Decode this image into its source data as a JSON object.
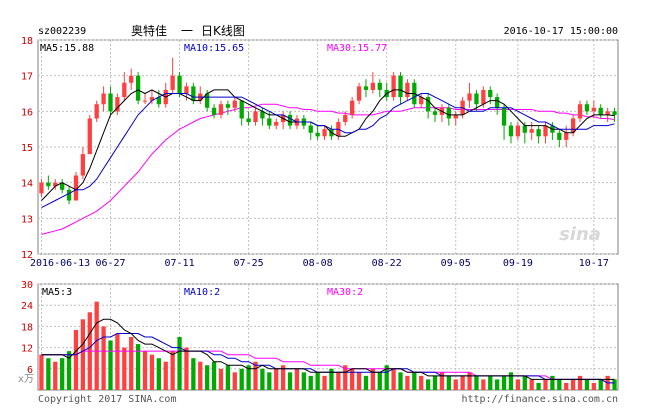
{
  "header": {
    "code": "sz002239",
    "name": "奥特佳",
    "sep": "一",
    "period": "日K线图",
    "datetime": "2016-10-17 15:00:00"
  },
  "price_panel": {
    "ma5_label": "MA5:15.88",
    "ma10_label": "MA10:15.65",
    "ma30_label": "MA30:15.77",
    "y_ticks": [
      "18",
      "17",
      "16",
      "15",
      "14",
      "13",
      "12"
    ],
    "x_ticks": [
      "2016-06-13",
      "06-27",
      "07-11",
      "07-25",
      "08-08",
      "08-22",
      "09-05",
      "09-19",
      "10-17"
    ]
  },
  "volume_panel": {
    "ma5_label": "MA5:3",
    "ma10_label": "MA10:2",
    "ma30_label": "MA30:2",
    "y_ticks": [
      "30",
      "24",
      "18",
      "12",
      "6"
    ],
    "unit": "x万"
  },
  "watermark": "sina",
  "footer": {
    "copyright": "Copyright 2017 SINA.com",
    "url": "http://finance.sina.com.cn"
  },
  "colors": {
    "up": "#ff4040",
    "down": "#00aa00",
    "ma5": "#000000",
    "ma10": "#0000cc",
    "ma30": "#ff00ff",
    "grid": "#c0c0c0",
    "axis_label": "#cc0000"
  },
  "chart_data": [
    {
      "type": "candlestick",
      "title": "奥特佳 一 日K线图",
      "ylim": [
        12,
        18
      ],
      "x_tick_labels": [
        "2016-06-13",
        "06-27",
        "07-11",
        "07-25",
        "08-08",
        "08-22",
        "09-05",
        "09-19",
        "10-17"
      ],
      "series": [
        {
          "name": "MA5",
          "values": [
            13.5,
            13.7,
            13.9,
            14.0,
            13.9,
            13.8,
            14.0,
            14.4,
            14.9,
            15.4,
            15.9,
            16.1,
            16.3,
            16.5,
            16.6,
            16.5,
            16.6,
            16.5,
            16.4,
            16.5,
            16.5,
            16.4,
            16.3,
            16.3,
            16.5,
            16.6,
            16.6,
            16.6,
            16.4,
            16.3,
            16.2,
            16.1,
            16.0,
            15.9,
            15.9,
            15.8,
            15.7,
            15.7,
            15.7,
            15.7,
            15.6,
            15.6,
            15.4,
            15.3,
            15.3,
            15.4,
            15.5,
            15.8,
            16.0,
            16.3,
            16.5,
            16.6,
            16.6,
            16.5,
            16.5,
            16.4,
            16.3,
            16.1,
            16.0,
            15.9,
            15.9,
            15.9,
            16.0,
            16.1,
            16.2,
            16.3,
            16.3,
            16.2,
            16.0,
            15.8,
            15.6,
            15.6,
            15.6,
            15.6,
            15.5,
            15.5,
            15.4,
            15.4,
            15.6,
            15.8,
            15.9,
            15.9,
            15.9,
            15.88
          ]
        },
        {
          "name": "MA10",
          "values": [
            13.3,
            13.4,
            13.5,
            13.6,
            13.7,
            13.8,
            13.8,
            13.9,
            14.1,
            14.4,
            14.7,
            15.0,
            15.3,
            15.6,
            15.9,
            16.1,
            16.3,
            16.4,
            16.5,
            16.5,
            16.5,
            16.5,
            16.4,
            16.4,
            16.4,
            16.4,
            16.4,
            16.4,
            16.4,
            16.4,
            16.3,
            16.2,
            16.1,
            16.0,
            15.9,
            15.9,
            15.8,
            15.7,
            15.7,
            15.7,
            15.6,
            15.6,
            15.5,
            15.5,
            15.4,
            15.4,
            15.5,
            15.5,
            15.6,
            15.8,
            15.9,
            16.1,
            16.2,
            16.3,
            16.4,
            16.5,
            16.5,
            16.4,
            16.3,
            16.2,
            16.1,
            16.1,
            16.0,
            16.0,
            16.0,
            16.1,
            16.1,
            16.1,
            16.1,
            16.0,
            15.9,
            15.8,
            15.7,
            15.7,
            15.6,
            15.5,
            15.5,
            15.5,
            15.5,
            15.5,
            15.6,
            15.6,
            15.6,
            15.65
          ]
        },
        {
          "name": "MA30",
          "values": [
            12.55,
            12.6,
            12.65,
            12.7,
            12.8,
            12.9,
            13.0,
            13.1,
            13.2,
            13.35,
            13.5,
            13.7,
            13.9,
            14.1,
            14.3,
            14.55,
            14.8,
            15.0,
            15.2,
            15.35,
            15.5,
            15.6,
            15.7,
            15.8,
            15.85,
            15.9,
            15.95,
            16.0,
            16.05,
            16.1,
            16.1,
            16.15,
            16.2,
            16.2,
            16.2,
            16.15,
            16.1,
            16.1,
            16.05,
            16.05,
            16.0,
            16.0,
            16.0,
            15.95,
            15.95,
            15.9,
            15.9,
            15.9,
            15.9,
            15.95,
            16.0,
            16.0,
            16.0,
            16.05,
            16.1,
            16.1,
            16.1,
            16.1,
            16.1,
            16.1,
            16.05,
            16.05,
            16.05,
            16.05,
            16.05,
            16.05,
            16.05,
            16.05,
            16.05,
            16.05,
            16.05,
            16.05,
            16.0,
            16.0,
            16.0,
            15.95,
            15.95,
            15.9,
            15.9,
            15.85,
            15.85,
            15.8,
            15.8,
            15.77
          ]
        }
      ],
      "candles": [
        [
          13.7,
          14.0,
          13.6,
          14.1
        ],
        [
          14.0,
          13.9,
          13.8,
          14.2
        ],
        [
          13.9,
          14.0,
          13.8,
          14.1
        ],
        [
          14.0,
          13.8,
          13.7,
          14.1
        ],
        [
          13.8,
          13.5,
          13.4,
          13.9
        ],
        [
          13.5,
          14.2,
          13.5,
          14.3
        ],
        [
          14.2,
          14.8,
          14.1,
          15.0
        ],
        [
          14.8,
          15.8,
          14.8,
          15.9
        ],
        [
          15.8,
          16.2,
          15.7,
          16.3
        ],
        [
          16.2,
          16.5,
          16.0,
          16.7
        ],
        [
          16.5,
          16.0,
          15.9,
          16.7
        ],
        [
          16.0,
          16.4,
          15.9,
          16.5
        ],
        [
          16.4,
          16.8,
          16.3,
          17.1
        ],
        [
          16.8,
          17.0,
          16.6,
          17.2
        ],
        [
          17.0,
          16.3,
          16.2,
          17.1
        ],
        [
          16.3,
          16.3,
          16.2,
          16.5
        ],
        [
          16.3,
          16.4,
          16.2,
          16.6
        ],
        [
          16.4,
          16.2,
          16.1,
          16.6
        ],
        [
          16.2,
          16.6,
          16.1,
          16.8
        ],
        [
          16.6,
          17.0,
          16.5,
          17.5
        ],
        [
          17.0,
          16.5,
          16.4,
          17.1
        ],
        [
          16.5,
          16.7,
          16.3,
          16.8
        ],
        [
          16.7,
          16.3,
          16.2,
          16.8
        ],
        [
          16.3,
          16.5,
          16.2,
          16.7
        ],
        [
          16.5,
          16.1,
          16.0,
          16.6
        ],
        [
          16.1,
          15.9,
          15.8,
          16.2
        ],
        [
          15.9,
          16.2,
          15.8,
          16.3
        ],
        [
          16.2,
          16.1,
          15.9,
          16.3
        ],
        [
          16.1,
          16.3,
          16.0,
          16.4
        ],
        [
          16.3,
          15.8,
          15.6,
          16.3
        ],
        [
          15.8,
          15.7,
          15.6,
          16.0
        ],
        [
          15.7,
          16.0,
          15.6,
          16.1
        ],
        [
          16.0,
          15.8,
          15.6,
          16.1
        ],
        [
          15.8,
          15.6,
          15.5,
          16.0
        ],
        [
          15.6,
          15.7,
          15.5,
          15.8
        ],
        [
          15.7,
          15.9,
          15.5,
          16.0
        ],
        [
          15.9,
          15.6,
          15.5,
          16.0
        ],
        [
          15.6,
          15.8,
          15.5,
          15.9
        ],
        [
          15.8,
          15.6,
          15.5,
          15.9
        ],
        [
          15.6,
          15.4,
          15.2,
          15.7
        ],
        [
          15.4,
          15.3,
          15.2,
          15.6
        ],
        [
          15.3,
          15.5,
          15.2,
          15.6
        ],
        [
          15.5,
          15.3,
          15.2,
          15.6
        ],
        [
          15.3,
          15.7,
          15.2,
          15.8
        ],
        [
          15.7,
          15.9,
          15.6,
          16.0
        ],
        [
          15.9,
          16.3,
          15.8,
          16.4
        ],
        [
          16.3,
          16.7,
          16.2,
          16.8
        ],
        [
          16.7,
          16.6,
          16.4,
          16.9
        ],
        [
          16.6,
          16.8,
          16.5,
          17.1
        ],
        [
          16.8,
          16.6,
          16.4,
          16.9
        ],
        [
          16.6,
          16.4,
          16.3,
          16.8
        ],
        [
          16.4,
          17.0,
          16.3,
          17.1
        ],
        [
          17.0,
          16.4,
          16.2,
          17.1
        ],
        [
          16.4,
          16.8,
          16.3,
          16.9
        ],
        [
          16.8,
          16.2,
          16.1,
          16.9
        ],
        [
          16.2,
          16.4,
          16.1,
          16.5
        ],
        [
          16.4,
          16.0,
          15.8,
          16.5
        ],
        [
          16.0,
          15.9,
          15.7,
          16.1
        ],
        [
          15.9,
          16.1,
          15.7,
          16.2
        ],
        [
          16.1,
          15.8,
          15.6,
          16.2
        ],
        [
          15.8,
          15.9,
          15.6,
          16.0
        ],
        [
          15.9,
          16.3,
          15.8,
          16.4
        ],
        [
          16.3,
          16.5,
          16.1,
          16.8
        ],
        [
          16.5,
          16.2,
          16.0,
          16.6
        ],
        [
          16.2,
          16.6,
          16.1,
          16.7
        ],
        [
          16.6,
          16.4,
          16.2,
          16.7
        ],
        [
          16.4,
          16.1,
          15.9,
          16.5
        ],
        [
          16.1,
          15.6,
          15.2,
          16.2
        ],
        [
          15.6,
          15.3,
          15.1,
          15.7
        ],
        [
          15.3,
          15.6,
          15.2,
          15.7
        ],
        [
          15.6,
          15.4,
          15.1,
          15.7
        ],
        [
          15.4,
          15.5,
          15.2,
          15.7
        ],
        [
          15.5,
          15.3,
          15.1,
          15.6
        ],
        [
          15.3,
          15.6,
          15.1,
          15.7
        ],
        [
          15.6,
          15.4,
          15.2,
          15.7
        ],
        [
          15.4,
          15.2,
          15.0,
          15.5
        ],
        [
          15.2,
          15.4,
          15.0,
          15.6
        ],
        [
          15.4,
          15.8,
          15.3,
          15.9
        ],
        [
          15.8,
          16.2,
          15.7,
          16.3
        ],
        [
          16.2,
          16.0,
          15.9,
          16.3
        ],
        [
          16.0,
          16.1,
          15.8,
          16.3
        ],
        [
          16.1,
          15.9,
          15.8,
          16.2
        ],
        [
          15.9,
          16.0,
          15.7,
          16.1
        ],
        [
          16.0,
          15.9,
          15.7,
          16.1
        ]
      ],
      "candle_fields": [
        "open",
        "close",
        "low",
        "high"
      ]
    },
    {
      "type": "bar",
      "ylim": [
        0,
        30
      ],
      "values": [
        10,
        9,
        8,
        9,
        11,
        17,
        20,
        22,
        25,
        18,
        14,
        16,
        12,
        15,
        13,
        11,
        10,
        9,
        8,
        11,
        15,
        12,
        9,
        8,
        7,
        8,
        6,
        7,
        5,
        6,
        7,
        8,
        6,
        5,
        6,
        7,
        5,
        6,
        5,
        4,
        5,
        4,
        6,
        5,
        7,
        6,
        5,
        4,
        6,
        5,
        7,
        6,
        5,
        4,
        5,
        4,
        3,
        4,
        5,
        4,
        3,
        4,
        5,
        4,
        3,
        4,
        3,
        4,
        5,
        3,
        4,
        3,
        2,
        3,
        4,
        3,
        2,
        3,
        4,
        3,
        2,
        3,
        4,
        3
      ],
      "up_down": [
        1,
        0,
        1,
        0,
        0,
        1,
        1,
        1,
        1,
        1,
        0,
        1,
        1,
        1,
        0,
        1,
        1,
        0,
        1,
        1,
        0,
        1,
        0,
        1,
        0,
        0,
        1,
        0,
        1,
        0,
        0,
        1,
        0,
        0,
        1,
        1,
        0,
        1,
        0,
        0,
        0,
        1,
        0,
        1,
        1,
        1,
        1,
        0,
        1,
        0,
        0,
        1,
        0,
        1,
        0,
        1,
        0,
        0,
        1,
        0,
        1,
        1,
        1,
        0,
        1,
        0,
        0,
        0,
        0,
        1,
        0,
        1,
        0,
        1,
        0,
        0,
        1,
        1,
        1,
        0,
        1,
        0,
        1,
        0
      ],
      "series": [
        {
          "name": "MA5",
          "values": [
            10,
            10,
            10,
            10,
            9,
            11,
            13,
            16,
            19,
            20,
            20,
            19,
            17,
            16,
            14,
            13,
            13,
            12,
            11,
            10,
            11,
            11,
            11,
            11,
            10,
            8,
            8,
            7,
            7,
            7,
            6,
            6,
            7,
            6,
            6,
            6,
            6,
            6,
            6,
            5,
            5,
            5,
            5,
            5,
            5,
            6,
            6,
            6,
            5,
            5,
            6,
            6,
            6,
            5,
            5,
            5,
            4,
            4,
            4,
            4,
            4,
            4,
            4,
            4,
            4,
            4,
            4,
            4,
            4,
            4,
            4,
            3,
            3,
            3,
            3,
            3,
            3,
            3,
            3,
            3,
            3,
            3,
            3,
            3
          ]
        },
        {
          "name": "MA10",
          "values": [
            10,
            10,
            10,
            10,
            10,
            10,
            11,
            12,
            14,
            15,
            15,
            16,
            16,
            16,
            16,
            15,
            15,
            14,
            13,
            12,
            12,
            11,
            11,
            11,
            11,
            10,
            10,
            9,
            9,
            8,
            8,
            7,
            7,
            7,
            6,
            6,
            6,
            6,
            6,
            6,
            5,
            5,
            5,
            5,
            5,
            5,
            5,
            5,
            5,
            5,
            5,
            6,
            6,
            6,
            5,
            5,
            5,
            5,
            4,
            4,
            4,
            4,
            4,
            4,
            4,
            4,
            4,
            4,
            4,
            4,
            4,
            4,
            4,
            3,
            3,
            3,
            3,
            3,
            3,
            3,
            3,
            3,
            2,
            2
          ]
        },
        {
          "name": "MA30",
          "values": [
            10,
            10,
            10,
            10,
            10,
            10,
            11,
            11,
            11,
            11,
            11,
            11,
            11,
            11,
            11,
            11,
            11,
            11,
            11,
            11,
            11,
            11,
            11,
            11,
            11,
            11,
            11,
            10,
            10,
            10,
            10,
            9,
            9,
            9,
            9,
            8,
            8,
            8,
            8,
            7,
            7,
            7,
            7,
            7,
            6,
            6,
            6,
            6,
            6,
            6,
            6,
            6,
            6,
            5,
            5,
            5,
            5,
            5,
            5,
            5,
            5,
            5,
            5,
            4,
            4,
            4,
            4,
            4,
            4,
            4,
            4,
            4,
            4,
            4,
            3,
            3,
            3,
            3,
            3,
            3,
            3,
            3,
            2,
            2
          ]
        }
      ]
    }
  ]
}
